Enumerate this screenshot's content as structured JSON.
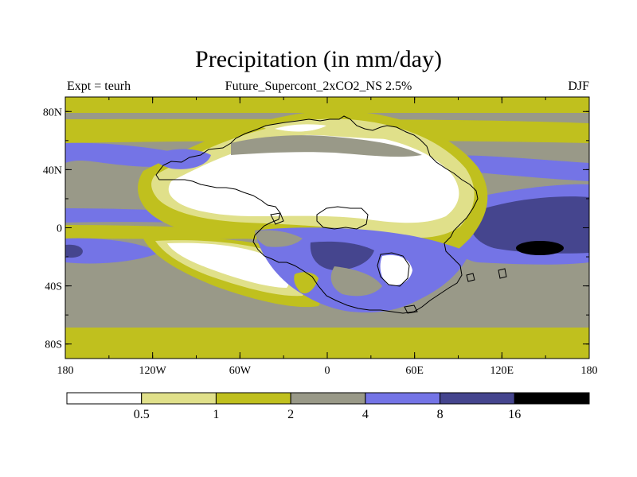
{
  "title": "Precipitation (in mm/day)",
  "subtitle": "Future_Supercont_2xCO2_NS 2.5%",
  "left_label": "Expt = teurh",
  "right_label": "DJF",
  "colors": {
    "level0": "#ffffff",
    "level1": "#e0e08a",
    "level2": "#c0c01e",
    "level3": "#999988",
    "level4": "#7474e6",
    "level5": "#45458e",
    "level6": "#000000",
    "coast": "#000000"
  },
  "chart_data": {
    "type": "heatmap",
    "x_axis": {
      "range": [
        -180,
        180
      ],
      "ticks": [
        "180",
        "120W",
        "60W",
        "0",
        "60E",
        "120E",
        "180"
      ]
    },
    "y_axis": {
      "range": [
        -90,
        90
      ],
      "ticks": [
        "80N",
        "40N",
        "0",
        "40S",
        "80S"
      ]
    },
    "colorbar": {
      "levels": [
        0.5,
        1,
        2,
        4,
        8,
        16
      ],
      "labels": [
        "0.5",
        "1",
        "2",
        "4",
        "8",
        "16"
      ],
      "colors": [
        "#ffffff",
        "#e0e08a",
        "#c0c01e",
        "#999988",
        "#7474e6",
        "#45458e",
        "#000000"
      ]
    }
  }
}
